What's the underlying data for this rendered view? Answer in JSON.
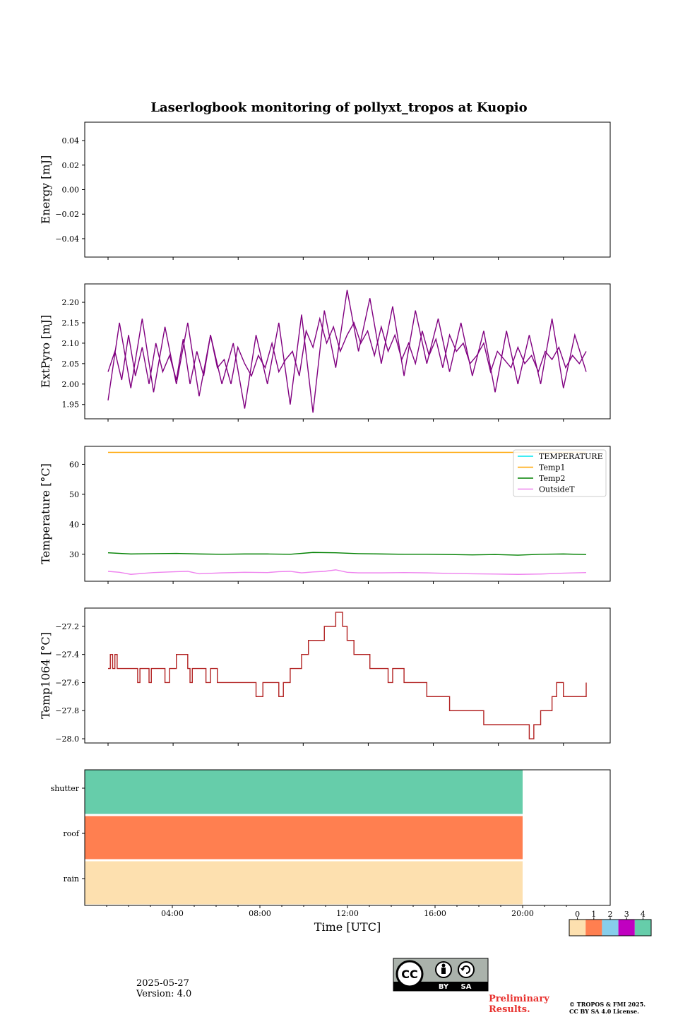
{
  "figure": {
    "title": "Laserlogbook monitoring of pollyxt_tropos at Kuopio"
  },
  "footer": {
    "date": "2025-05-27",
    "version": "Version: 4.0",
    "preliminary_line1": "Preliminary",
    "preliminary_line2": "Results.",
    "copyright_line1": "© TROPOS & FMI 2025.",
    "copyright_line2": "CC BY SA 4.0 License.",
    "license_badge": {
      "cc": "CC",
      "by": "BY",
      "sa": "SA"
    }
  },
  "colorbar": {
    "ticks": [
      "0",
      "1",
      "2",
      "3",
      "4"
    ],
    "colors": [
      "#fde0af",
      "#ff7f50",
      "#87ceeb",
      "#c000c0",
      "#66cdaa"
    ]
  },
  "chart_data": [
    {
      "id": "energy",
      "type": "line",
      "ylabel": "Energy [mJ]",
      "ylim": [
        -0.055,
        0.055
      ],
      "yticks": [
        0.04,
        0.02,
        0.0,
        -0.02,
        -0.04
      ],
      "ytick_labels": [
        "0.04",
        "0.02",
        "0.00",
        "−0.02",
        "−0.04"
      ],
      "xlim": [
        0.0,
        24.0
      ],
      "series": []
    },
    {
      "id": "extpyro",
      "type": "line",
      "ylabel": "ExtPyro [mJ]",
      "ylim": [
        1.915,
        2.245
      ],
      "yticks": [
        2.2,
        2.15,
        2.1,
        2.05,
        2.0,
        1.95
      ],
      "ytick_labels": [
        "2.20",
        "2.15",
        "2.10",
        "2.05",
        "2.00",
        "1.95"
      ],
      "xlim": [
        0.0,
        24.0
      ],
      "series": [
        {
          "color": "#800080",
          "x": [
            1.0,
            1.3,
            1.6,
            1.9,
            2.2,
            2.5,
            2.8,
            3.1,
            3.4,
            3.7,
            4.0,
            4.3,
            4.6,
            4.9,
            5.2,
            5.5,
            5.8,
            6.1,
            6.4,
            6.7,
            7.0,
            7.3,
            7.6,
            7.9,
            8.2,
            8.5,
            8.8,
            9.1,
            9.4,
            9.7,
            10.0,
            10.3,
            10.6,
            10.9,
            11.2,
            11.5,
            11.8,
            12.1,
            12.4,
            12.7,
            13.0,
            13.3,
            13.6,
            13.9,
            14.2,
            14.5,
            14.8,
            15.1,
            15.4,
            15.7,
            16.0,
            16.3,
            16.6,
            16.9,
            17.2,
            17.5,
            17.8,
            18.1,
            18.4,
            18.7,
            19.0,
            19.3,
            19.6,
            19.9,
            20.2,
            20.5,
            20.8,
            21.1,
            21.4,
            21.7,
            22.0
          ],
          "y": [
            2.03,
            2.08,
            2.01,
            2.12,
            2.02,
            2.09,
            2.0,
            2.1,
            2.03,
            2.07,
            2.01,
            2.11,
            2.0,
            2.08,
            2.02,
            2.12,
            2.04,
            2.06,
            2.0,
            2.09,
            2.05,
            2.02,
            2.07,
            2.04,
            2.1,
            2.03,
            2.06,
            2.08,
            2.02,
            2.13,
            2.09,
            2.16,
            2.1,
            2.14,
            2.08,
            2.12,
            2.15,
            2.1,
            2.13,
            2.07,
            2.14,
            2.08,
            2.12,
            2.06,
            2.1,
            2.05,
            2.13,
            2.07,
            2.11,
            2.04,
            2.12,
            2.08,
            2.1,
            2.05,
            2.07,
            2.1,
            2.03,
            2.08,
            2.06,
            2.04,
            2.09,
            2.05,
            2.07,
            2.03,
            2.08,
            2.06,
            2.09,
            2.04,
            2.07,
            2.05,
            2.08
          ]
        },
        {
          "color": "#800080",
          "x": [
            1.0,
            1.5,
            2.0,
            2.5,
            3.0,
            3.5,
            4.0,
            4.5,
            5.0,
            5.5,
            6.0,
            6.5,
            7.0,
            7.5,
            8.0,
            8.5,
            9.0,
            9.5,
            10.0,
            10.5,
            11.0,
            11.5,
            12.0,
            12.5,
            13.0,
            13.5,
            14.0,
            14.5,
            15.0,
            15.5,
            16.0,
            16.5,
            17.0,
            17.5,
            18.0,
            18.5,
            19.0,
            19.5,
            20.0,
            20.5,
            21.0,
            21.5,
            22.0
          ],
          "y": [
            1.96,
            2.15,
            1.99,
            2.16,
            1.98,
            2.14,
            2.0,
            2.15,
            1.97,
            2.12,
            2.0,
            2.1,
            1.94,
            2.12,
            2.0,
            2.15,
            1.95,
            2.17,
            1.93,
            2.18,
            2.04,
            2.23,
            2.08,
            2.21,
            2.05,
            2.19,
            2.02,
            2.18,
            2.05,
            2.16,
            2.03,
            2.15,
            2.02,
            2.13,
            1.98,
            2.13,
            2.0,
            2.12,
            2.0,
            2.16,
            1.99,
            2.12,
            2.03
          ]
        }
      ]
    },
    {
      "id": "temperature",
      "type": "line",
      "ylabel": "Temperature [°C]",
      "ylim": [
        21.0,
        66.0
      ],
      "yticks": [
        60,
        50,
        40,
        30
      ],
      "ytick_labels": [
        "60",
        "50",
        "40",
        "30"
      ],
      "xlim": [
        0.0,
        24.0
      ],
      "legend": {
        "placement": "top-right",
        "entries": [
          {
            "name": "TEMPERATURE",
            "color": "#00e5ee"
          },
          {
            "name": "Temp1",
            "color": "#ffa500"
          },
          {
            "name": "Temp2",
            "color": "#008000"
          },
          {
            "name": "OutsideT",
            "color": "#ee82ee"
          }
        ]
      },
      "series": [
        {
          "name": "TEMPERATURE",
          "color": "#00e5ee",
          "x": [],
          "y": []
        },
        {
          "name": "Temp1",
          "color": "#ffa500",
          "x": [
            1.0,
            22.0
          ],
          "y": [
            64.0,
            64.0
          ]
        },
        {
          "name": "Temp2",
          "color": "#008000",
          "x": [
            1.0,
            2.0,
            3.0,
            4.0,
            5.0,
            6.0,
            7.0,
            8.0,
            9.0,
            10.0,
            11.0,
            12.0,
            13.0,
            14.0,
            15.0,
            16.0,
            17.0,
            18.0,
            19.0,
            20.0,
            21.0,
            22.0
          ],
          "y": [
            30.5,
            30.1,
            30.2,
            30.3,
            30.1,
            30.0,
            30.1,
            30.1,
            30.0,
            30.6,
            30.5,
            30.2,
            30.1,
            30.0,
            30.0,
            29.9,
            29.8,
            29.9,
            29.7,
            30.0,
            30.1,
            29.9
          ]
        },
        {
          "name": "OutsideT",
          "color": "#ee82ee",
          "x": [
            1.0,
            1.5,
            2.0,
            3.0,
            4.0,
            4.5,
            5.0,
            6.0,
            7.0,
            8.0,
            8.5,
            9.0,
            9.5,
            10.0,
            10.5,
            11.0,
            11.5,
            12.0,
            13.0,
            14.0,
            15.0,
            16.0,
            17.0,
            18.0,
            19.0,
            20.0,
            21.0,
            22.0
          ],
          "y": [
            24.3,
            24.0,
            23.3,
            23.9,
            24.2,
            24.3,
            23.5,
            23.8,
            24.0,
            23.9,
            24.2,
            24.3,
            23.8,
            24.1,
            24.3,
            24.8,
            24.0,
            23.8,
            23.8,
            23.9,
            23.8,
            23.6,
            23.5,
            23.4,
            23.3,
            23.4,
            23.7,
            23.9
          ]
        }
      ]
    },
    {
      "id": "temp1064",
      "type": "line",
      "ylabel": "Temp1064 [°C]",
      "ylim": [
        -28.03,
        -27.07
      ],
      "yticks": [
        -27.2,
        -27.4,
        -27.6,
        -27.8,
        -28.0
      ],
      "ytick_labels": [
        "−27.2",
        "−27.4",
        "−27.6",
        "−27.8",
        "−28.0"
      ],
      "xlim": [
        0.0,
        24.0
      ],
      "series": [
        {
          "color": "#b22222",
          "x": [
            1.0,
            1.1,
            1.2,
            1.3,
            1.4,
            1.5,
            2.0,
            2.3,
            2.4,
            2.6,
            2.8,
            2.9,
            3.0,
            3.5,
            3.7,
            3.8,
            4.0,
            4.5,
            4.6,
            4.7,
            5.0,
            5.3,
            5.5,
            5.8,
            6.0,
            6.5,
            7.0,
            7.5,
            7.8,
            8.0,
            8.5,
            8.7,
            8.9,
            9.0,
            9.3,
            9.5,
            9.6,
            9.8,
            10.0,
            10.5,
            11.0,
            11.3,
            11.5,
            11.8,
            12.0,
            12.3,
            12.5,
            13.0,
            13.3,
            13.5,
            14.0,
            14.5,
            15.0,
            15.5,
            16.0,
            16.5,
            17.0,
            17.5,
            18.0,
            18.3,
            18.5,
            19.0,
            19.5,
            19.7,
            20.0,
            20.5,
            20.7,
            21.0,
            21.5,
            22.0
          ],
          "y": [
            -27.5,
            -27.4,
            -27.5,
            -27.4,
            -27.5,
            -27.5,
            -27.5,
            -27.6,
            -27.5,
            -27.5,
            -27.6,
            -27.5,
            -27.5,
            -27.6,
            -27.5,
            -27.5,
            -27.4,
            -27.5,
            -27.6,
            -27.5,
            -27.5,
            -27.6,
            -27.5,
            -27.6,
            -27.6,
            -27.6,
            -27.6,
            -27.7,
            -27.6,
            -27.6,
            -27.7,
            -27.6,
            -27.6,
            -27.5,
            -27.5,
            -27.4,
            -27.4,
            -27.3,
            -27.3,
            -27.2,
            -27.1,
            -27.2,
            -27.3,
            -27.4,
            -27.4,
            -27.4,
            -27.5,
            -27.5,
            -27.6,
            -27.5,
            -27.6,
            -27.6,
            -27.7,
            -27.7,
            -27.8,
            -27.8,
            -27.8,
            -27.9,
            -27.9,
            -27.9,
            -27.9,
            -27.9,
            -28.0,
            -27.9,
            -27.8,
            -27.7,
            -27.6,
            -27.7,
            -27.7,
            -27.6
          ]
        }
      ]
    },
    {
      "id": "status",
      "type": "heatmap",
      "rows": [
        "shutter",
        "roof",
        "rain"
      ],
      "row_values": [
        4,
        1,
        0
      ],
      "x_range": [
        0.0,
        22.0
      ],
      "xlim": [
        0.0,
        24.0
      ],
      "xlabel": "Time [UTC]",
      "xticks": [
        4,
        8,
        12,
        16,
        20
      ],
      "xtick_labels": [
        "04:00",
        "08:00",
        "12:00",
        "16:00",
        "20:00"
      ]
    }
  ]
}
